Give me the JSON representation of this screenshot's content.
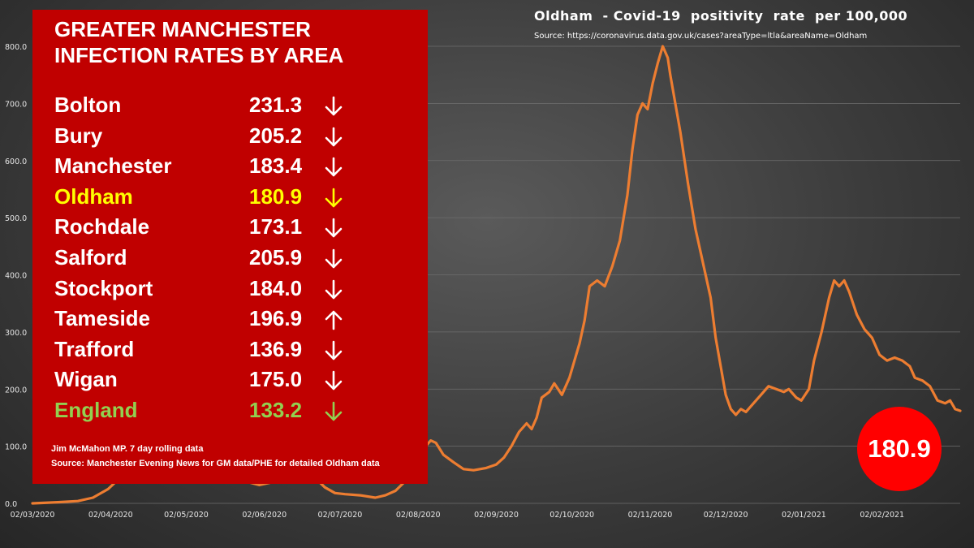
{
  "chart_data": {
    "type": "line",
    "title": "Oldham  - Covid-19  positivity  rate  per 100,000",
    "source": "Source: https://coronavirus.data.gov.uk/cases?areaType=ltla&areaName=Oldham",
    "ylim": [
      0,
      800
    ],
    "yticks": [
      "0.0",
      "100.0",
      "200.0",
      "300.0",
      "400.0",
      "500.0",
      "600.0",
      "700.0",
      "800.0"
    ],
    "xticks": [
      "02/03/2020",
      "02/04/2020",
      "02/05/2020",
      "02/06/2020",
      "02/07/2020",
      "02/08/2020",
      "02/09/2020",
      "02/10/2020",
      "02/11/2020",
      "02/12/2020",
      "02/01/2021",
      "02/02/2021"
    ],
    "xtick_days": [
      0,
      31,
      61,
      92,
      122,
      153,
      184,
      214,
      245,
      275,
      306,
      337
    ],
    "grid": true,
    "line_color": "#ed7d31",
    "series": [
      {
        "points": [
          [
            0,
            0
          ],
          [
            10,
            2
          ],
          [
            18,
            4
          ],
          [
            24,
            10
          ],
          [
            30,
            25
          ],
          [
            36,
            50
          ],
          [
            42,
            72
          ],
          [
            48,
            80
          ],
          [
            55,
            68
          ],
          [
            62,
            55
          ],
          [
            70,
            48
          ],
          [
            78,
            44
          ],
          [
            85,
            38
          ],
          [
            90,
            32
          ],
          [
            96,
            38
          ],
          [
            102,
            52
          ],
          [
            108,
            65
          ],
          [
            112,
            45
          ],
          [
            116,
            28
          ],
          [
            120,
            18
          ],
          [
            124,
            16
          ],
          [
            130,
            14
          ],
          [
            136,
            10
          ],
          [
            140,
            14
          ],
          [
            144,
            22
          ],
          [
            147,
            35
          ],
          [
            150,
            50
          ],
          [
            153,
            70
          ],
          [
            156,
            100
          ],
          [
            158,
            110
          ],
          [
            160,
            106
          ],
          [
            163,
            85
          ],
          [
            167,
            72
          ],
          [
            171,
            60
          ],
          [
            175,
            58
          ],
          [
            180,
            62
          ],
          [
            184,
            68
          ],
          [
            187,
            80
          ],
          [
            190,
            100
          ],
          [
            193,
            125
          ],
          [
            196,
            140
          ],
          [
            198,
            130
          ],
          [
            200,
            150
          ],
          [
            202,
            185
          ],
          [
            205,
            195
          ],
          [
            207,
            210
          ],
          [
            210,
            190
          ],
          [
            213,
            220
          ],
          [
            215,
            250
          ],
          [
            217,
            280
          ],
          [
            219,
            320
          ],
          [
            221,
            380
          ],
          [
            224,
            390
          ],
          [
            227,
            380
          ],
          [
            230,
            415
          ],
          [
            233,
            460
          ],
          [
            236,
            540
          ],
          [
            238,
            620
          ],
          [
            240,
            680
          ],
          [
            242,
            700
          ],
          [
            244,
            690
          ],
          [
            246,
            735
          ],
          [
            248,
            770
          ],
          [
            250,
            800
          ],
          [
            252,
            780
          ],
          [
            253,
            750
          ],
          [
            255,
            700
          ],
          [
            257,
            650
          ],
          [
            260,
            560
          ],
          [
            263,
            480
          ],
          [
            266,
            420
          ],
          [
            269,
            360
          ],
          [
            271,
            290
          ],
          [
            273,
            240
          ],
          [
            275,
            190
          ],
          [
            277,
            165
          ],
          [
            279,
            155
          ],
          [
            281,
            165
          ],
          [
            283,
            160
          ],
          [
            286,
            175
          ],
          [
            289,
            190
          ],
          [
            292,
            205
          ],
          [
            295,
            200
          ],
          [
            298,
            195
          ],
          [
            300,
            200
          ],
          [
            303,
            185
          ],
          [
            305,
            180
          ],
          [
            308,
            200
          ],
          [
            310,
            250
          ],
          [
            313,
            300
          ],
          [
            316,
            360
          ],
          [
            318,
            390
          ],
          [
            320,
            380
          ],
          [
            322,
            390
          ],
          [
            324,
            370
          ],
          [
            327,
            330
          ],
          [
            330,
            305
          ],
          [
            333,
            290
          ],
          [
            336,
            260
          ],
          [
            339,
            250
          ],
          [
            342,
            255
          ],
          [
            345,
            250
          ],
          [
            348,
            240
          ],
          [
            350,
            220
          ],
          [
            353,
            215
          ],
          [
            356,
            205
          ],
          [
            359,
            180
          ],
          [
            362,
            175
          ],
          [
            364,
            180
          ],
          [
            366,
            165
          ],
          [
            368,
            162
          ]
        ]
      }
    ],
    "current_value_badge": "180.9"
  },
  "panel": {
    "heading_line1": "GREATER MANCHESTER",
    "heading_line2": "INFECTION RATES BY AREA",
    "rows": [
      {
        "name": "Bolton",
        "value": "231.3",
        "trend": "down"
      },
      {
        "name": "Bury",
        "value": "205.2",
        "trend": "down"
      },
      {
        "name": "Manchester",
        "value": "183.4",
        "trend": "down"
      },
      {
        "name": "Oldham",
        "value": "180.9",
        "trend": "down"
      },
      {
        "name": "Rochdale",
        "value": "173.1",
        "trend": "down"
      },
      {
        "name": "Salford",
        "value": "205.9",
        "trend": "down"
      },
      {
        "name": "Stockport",
        "value": "184.0",
        "trend": "down"
      },
      {
        "name": "Tameside",
        "value": "196.9",
        "trend": "up"
      },
      {
        "name": "Trafford",
        "value": "136.9",
        "trend": "down"
      },
      {
        "name": "Wigan",
        "value": "175.0",
        "trend": "down"
      },
      {
        "name": "England",
        "value": "133.2",
        "trend": "down"
      }
    ],
    "footnote_line1": "Jim McMahon MP. 7 day rolling data",
    "footnote_line2": "Source: Manchester Evening News for GM data/PHE  for detailed Oldham data",
    "colors": {
      "panel": "#c00000",
      "oldham": "#ffff00",
      "england": "#92d050"
    }
  }
}
